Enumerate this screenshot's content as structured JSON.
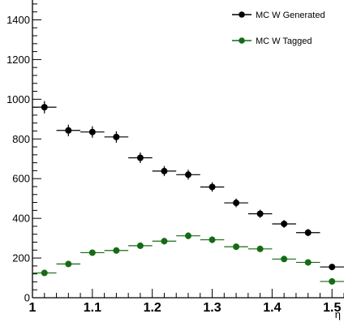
{
  "chart_data": {
    "type": "scatter",
    "xlabel": "η",
    "ylabel": "",
    "xlim": [
      1.0,
      1.52
    ],
    "ylim": [
      0,
      1500
    ],
    "x_ticks": [
      "1",
      "1.1",
      "1.2",
      "1.3",
      "1.4",
      "1.5"
    ],
    "y_ticks": [
      "0",
      "200",
      "400",
      "600",
      "800",
      "1000",
      "1200",
      "1400"
    ],
    "bin_edges": [
      1.0,
      1.04,
      1.08,
      1.12,
      1.16,
      1.2,
      1.24,
      1.28,
      1.32,
      1.36,
      1.4,
      1.44,
      1.48,
      1.52
    ],
    "x": [
      1.02,
      1.06,
      1.1,
      1.14,
      1.18,
      1.22,
      1.26,
      1.3,
      1.34,
      1.38,
      1.42,
      1.46,
      1.5
    ],
    "series": [
      {
        "name": "MC W Generated",
        "color": "#000000",
        "values": [
          960,
          843,
          835,
          810,
          705,
          638,
          620,
          558,
          478,
          423,
          372,
          328,
          155
        ]
      },
      {
        "name": "MC W Tagged",
        "color": "#156b15",
        "values": [
          125,
          170,
          227,
          238,
          262,
          285,
          312,
          292,
          257,
          246,
          195,
          178,
          82
        ]
      }
    ],
    "grid": false,
    "legend_position": "top-right"
  }
}
